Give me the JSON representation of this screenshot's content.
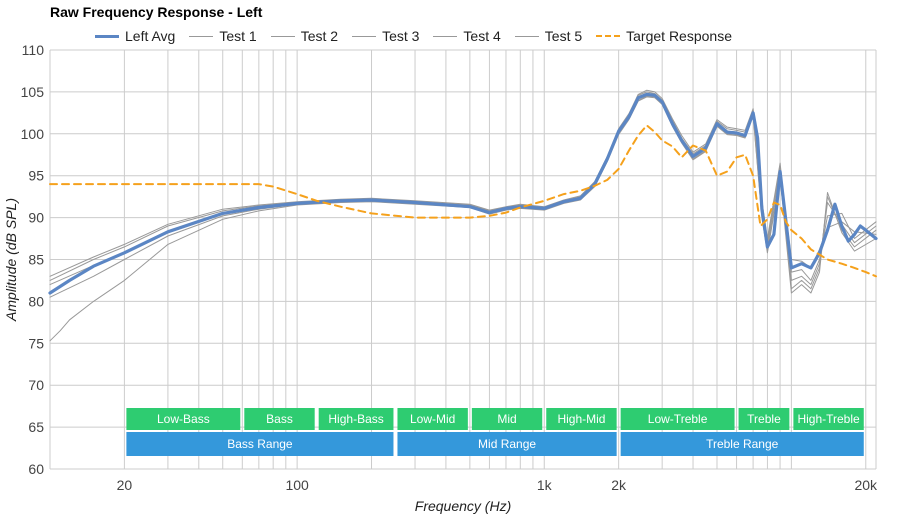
{
  "chart_data": {
    "type": "line",
    "title": "Raw Frequency Response - Left",
    "xlabel": "Frequency (Hz)",
    "ylabel": "Amplitude (dB SPL)",
    "xscale": "log",
    "xlim": [
      10,
      22000
    ],
    "ylim": [
      60,
      110
    ],
    "yticks": [
      60,
      65,
      70,
      75,
      80,
      85,
      90,
      95,
      100,
      105,
      110
    ],
    "xticks": [
      {
        "value": 20,
        "label": "20"
      },
      {
        "value": 100,
        "label": "100"
      },
      {
        "value": 1000,
        "label": "1k"
      },
      {
        "value": 2000,
        "label": "2k"
      },
      {
        "value": 20000,
        "label": "20k"
      }
    ],
    "grid": true,
    "legend_position": "top",
    "colors": {
      "avg": "#5b86c4",
      "test": "#999999",
      "target": "#f5a11c",
      "band_green": "#2ecc71",
      "band_blue": "#3498db"
    },
    "series": [
      {
        "name": "Left Avg",
        "style": "avg",
        "x": [
          10,
          12,
          15,
          20,
          30,
          50,
          70,
          100,
          150,
          200,
          300,
          500,
          600,
          700,
          800,
          1000,
          1200,
          1400,
          1600,
          1800,
          2000,
          2200,
          2400,
          2600,
          2800,
          3000,
          3300,
          3600,
          4000,
          4500,
          5000,
          5500,
          6000,
          6500,
          7000,
          7300,
          7600,
          8000,
          8500,
          9000,
          10000,
          11000,
          12000,
          13000,
          14000,
          15000,
          16000,
          17000,
          18000,
          19000,
          20000,
          22000
        ],
        "y": [
          81,
          82.5,
          84.2,
          85.8,
          88.3,
          90.5,
          91.2,
          91.7,
          92,
          92.1,
          91.8,
          91.3,
          90.6,
          91.1,
          91.3,
          91.1,
          91.9,
          92.3,
          94,
          97,
          100.3,
          102,
          104.3,
          104.7,
          104.6,
          103.8,
          101.2,
          99.2,
          97.3,
          98.3,
          101.2,
          100.2,
          100.1,
          99.8,
          102.5,
          99.5,
          91,
          86.5,
          88,
          95.5,
          84,
          84.5,
          84,
          85.8,
          88.5,
          91.6,
          89,
          87.2,
          88,
          89,
          88.5,
          87.5
        ]
      },
      {
        "name": "Test 1",
        "style": "test",
        "x": [
          10,
          15,
          20,
          30,
          50,
          70,
          100,
          150,
          200,
          300,
          500,
          600,
          700,
          800,
          1000,
          1200,
          1400,
          1600,
          1800,
          2000,
          2200,
          2400,
          2600,
          2800,
          3000,
          3300,
          3600,
          4000,
          4500,
          5000,
          5500,
          6000,
          6500,
          7000,
          7600,
          8000,
          9000,
          10000,
          11000,
          12000,
          13000,
          14000,
          16000,
          18000,
          22000
        ],
        "y": [
          82.5,
          85,
          86.5,
          89,
          90.8,
          91.4,
          91.8,
          92.1,
          92.2,
          91.9,
          91.5,
          90.8,
          91.2,
          91.5,
          91.2,
          92,
          92.5,
          94.2,
          97.2,
          100.5,
          102.3,
          104.6,
          105,
          104.8,
          104,
          101.6,
          99.5,
          97.6,
          98.6,
          101.5,
          100.6,
          100.4,
          100.2,
          102.8,
          91.5,
          87,
          96,
          85,
          84.8,
          84,
          86.2,
          88.8,
          89.5,
          88.3,
          88
        ]
      },
      {
        "name": "Test 2",
        "style": "test",
        "x": [
          10,
          15,
          20,
          30,
          50,
          70,
          100,
          150,
          200,
          300,
          500,
          600,
          700,
          800,
          1000,
          1200,
          1400,
          1600,
          1800,
          2000,
          2200,
          2400,
          2600,
          2800,
          3000,
          3300,
          3600,
          4000,
          4500,
          5000,
          5500,
          6000,
          6500,
          7000,
          7600,
          8000,
          9000,
          10000,
          11000,
          12000,
          13000,
          14000,
          16000,
          18000,
          22000
        ],
        "y": [
          83,
          85.3,
          86.8,
          89.2,
          91,
          91.5,
          91.9,
          92.2,
          92.3,
          92,
          91.6,
          90.9,
          91.3,
          91.6,
          91.3,
          92.1,
          92.6,
          94.3,
          97.3,
          100.6,
          102.4,
          104.7,
          105.2,
          105,
          104.2,
          101.8,
          99.8,
          97.8,
          98.8,
          101.7,
          100.8,
          100.6,
          100.4,
          103,
          92,
          87.5,
          96.5,
          83.5,
          83.8,
          82.5,
          85,
          90.2,
          90.5,
          87.5,
          89.5
        ]
      },
      {
        "name": "Test 3",
        "style": "test",
        "x": [
          10,
          15,
          20,
          30,
          50,
          70,
          100,
          150,
          200,
          300,
          500,
          600,
          700,
          800,
          1000,
          1200,
          1400,
          1600,
          1800,
          2000,
          2200,
          2400,
          2600,
          2800,
          3000,
          3300,
          3600,
          4000,
          4500,
          5000,
          5500,
          6000,
          6500,
          7000,
          7600,
          8000,
          9000,
          10000,
          11000,
          12000,
          13000,
          14000,
          16000,
          18000,
          22000
        ],
        "y": [
          82,
          84.3,
          85.9,
          88.4,
          90.5,
          91.2,
          91.7,
          92,
          92.1,
          91.8,
          91.3,
          90.6,
          91.1,
          91.3,
          91.1,
          91.9,
          92.3,
          94,
          97,
          100.3,
          102,
          104.3,
          104.7,
          104.6,
          103.8,
          101.3,
          99.3,
          97.4,
          98.4,
          101.3,
          100.3,
          100.2,
          99.9,
          102.6,
          91,
          86.5,
          95.8,
          82.5,
          83,
          82,
          84.5,
          91.8,
          89.2,
          87,
          89
        ]
      },
      {
        "name": "Test 4",
        "style": "test",
        "x": [
          10,
          15,
          20,
          30,
          50,
          70,
          100,
          150,
          200,
          300,
          500,
          600,
          700,
          800,
          1000,
          1200,
          1400,
          1600,
          1800,
          2000,
          2200,
          2400,
          2600,
          2800,
          3000,
          3300,
          3600,
          4000,
          4500,
          5000,
          5500,
          6000,
          6500,
          7000,
          7600,
          8000,
          9000,
          10000,
          11000,
          12000,
          13000,
          14000,
          16000,
          18000,
          22000
        ],
        "y": [
          80.5,
          83,
          85,
          87.8,
          90.2,
          91,
          91.6,
          91.9,
          92,
          91.7,
          91.2,
          90.5,
          91,
          91.2,
          91,
          91.8,
          92.2,
          93.8,
          96.8,
          100,
          101.8,
          104,
          104.5,
          104.4,
          103.6,
          101,
          99,
          97,
          98,
          101,
          100,
          99.9,
          99.6,
          102.3,
          90.2,
          86,
          95,
          81.5,
          82.5,
          81.5,
          84,
          92.5,
          88.5,
          86.5,
          88.5
        ]
      },
      {
        "name": "Test 5",
        "style": "test",
        "x": [
          10,
          11,
          12,
          15,
          20,
          30,
          50,
          70,
          100,
          150,
          200,
          300,
          500,
          600,
          700,
          800,
          1000,
          1200,
          1400,
          1600,
          1800,
          2000,
          2200,
          2400,
          2600,
          2800,
          3000,
          3300,
          3600,
          4000,
          4500,
          5000,
          5500,
          6000,
          6500,
          7000,
          7600,
          8000,
          9000,
          10000,
          11000,
          12000,
          13000,
          14000,
          16000,
          18000,
          22000
        ],
        "y": [
          75.3,
          76.5,
          77.8,
          80,
          82.5,
          86.8,
          89.8,
          90.8,
          91.5,
          91.8,
          91.9,
          91.6,
          91.2,
          90.4,
          90.9,
          91.1,
          90.9,
          91.7,
          92.1,
          93.7,
          96.7,
          99.9,
          101.7,
          103.9,
          104.4,
          104.3,
          103.5,
          100.9,
          98.9,
          96.9,
          97.9,
          100.9,
          99.9,
          99.8,
          99.5,
          102.2,
          90,
          85.8,
          94.8,
          81,
          82,
          81,
          83.5,
          93,
          88.2,
          86,
          87.5
        ]
      },
      {
        "name": "Target Response",
        "style": "target",
        "x": [
          10,
          20,
          40,
          60,
          70,
          80,
          100,
          120,
          150,
          200,
          300,
          500,
          600,
          700,
          800,
          1000,
          1200,
          1400,
          1600,
          1800,
          2000,
          2200,
          2400,
          2600,
          2800,
          3000,
          3300,
          3600,
          4000,
          4500,
          5000,
          5500,
          6000,
          6500,
          7000,
          7500,
          8000,
          8500,
          9000,
          9500,
          10000,
          11000,
          12000,
          14000,
          16000,
          18000,
          20000,
          22000
        ],
        "y": [
          94,
          94,
          94,
          94,
          94,
          93.7,
          92.8,
          92,
          91.3,
          90.5,
          90,
          90,
          90.2,
          90.6,
          91.2,
          92,
          92.8,
          93.2,
          93.8,
          94.5,
          95.8,
          98,
          99.8,
          101,
          100.2,
          99.2,
          98.5,
          97.2,
          98.6,
          98,
          95,
          95.5,
          97.2,
          97.5,
          95,
          89,
          89.8,
          91.8,
          91.5,
          89.5,
          88.5,
          87.5,
          86.2,
          85,
          84.5,
          84,
          83.5,
          83
        ]
      }
    ],
    "bands": [
      {
        "label": "Low-Bass",
        "from": 20,
        "to": 60,
        "row": 1
      },
      {
        "label": "Bass",
        "from": 60,
        "to": 120,
        "row": 1
      },
      {
        "label": "High-Bass",
        "from": 120,
        "to": 250,
        "row": 1
      },
      {
        "label": "Low-Mid",
        "from": 250,
        "to": 500,
        "row": 1
      },
      {
        "label": "Mid",
        "from": 500,
        "to": 1000,
        "row": 1
      },
      {
        "label": "High-Mid",
        "from": 1000,
        "to": 2000,
        "row": 1
      },
      {
        "label": "Low-Treble",
        "from": 2000,
        "to": 6000,
        "row": 1
      },
      {
        "label": "Treble",
        "from": 6000,
        "to": 10000,
        "row": 1
      },
      {
        "label": "High-Treble",
        "from": 10000,
        "to": 20000,
        "row": 1
      },
      {
        "label": "Bass Range",
        "from": 20,
        "to": 250,
        "row": 2
      },
      {
        "label": "Mid Range",
        "from": 250,
        "to": 2000,
        "row": 2
      },
      {
        "label": "Treble Range",
        "from": 2000,
        "to": 20000,
        "row": 2
      }
    ]
  }
}
